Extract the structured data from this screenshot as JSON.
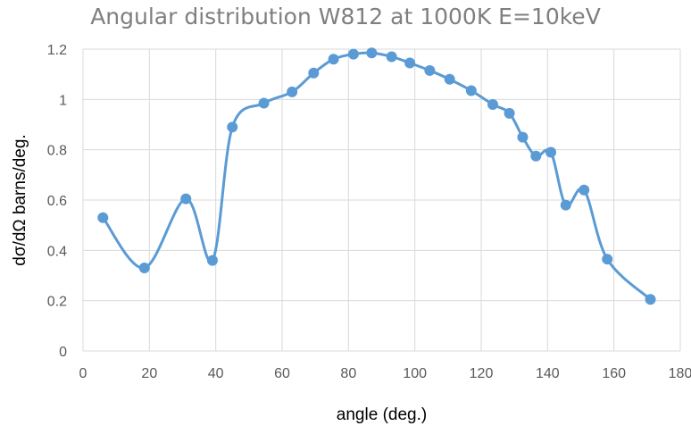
{
  "chart_data": {
    "type": "line",
    "title": "Angular distribution W812 at 1000K E=10keV",
    "xlabel": "angle (deg.)",
    "ylabel": "dσ/dΩ barns/deg.",
    "xlim": [
      0,
      180
    ],
    "ylim": [
      0,
      1.2
    ],
    "x_ticks": [
      "0",
      "20",
      "40",
      "60",
      "80",
      "100",
      "120",
      "140",
      "160",
      "180"
    ],
    "y_ticks": [
      "0",
      "0.2",
      "0.4",
      "0.6",
      "0.8",
      "1",
      "1.2"
    ],
    "grid": true,
    "smooth": true,
    "marker": "circle",
    "series": [
      {
        "color": "#5b9bd5",
        "points": [
          {
            "x": 6,
            "y": 0.53
          },
          {
            "x": 18.5,
            "y": 0.33
          },
          {
            "x": 31,
            "y": 0.605
          },
          {
            "x": 39,
            "y": 0.36
          },
          {
            "x": 45,
            "y": 0.89
          },
          {
            "x": 54.5,
            "y": 0.985
          },
          {
            "x": 63,
            "y": 1.03
          },
          {
            "x": 69.5,
            "y": 1.105
          },
          {
            "x": 75.5,
            "y": 1.16
          },
          {
            "x": 81.5,
            "y": 1.18
          },
          {
            "x": 87,
            "y": 1.185
          },
          {
            "x": 93,
            "y": 1.17
          },
          {
            "x": 98.5,
            "y": 1.145
          },
          {
            "x": 104.5,
            "y": 1.115
          },
          {
            "x": 110.5,
            "y": 1.08
          },
          {
            "x": 117,
            "y": 1.035
          },
          {
            "x": 123.5,
            "y": 0.98
          },
          {
            "x": 128.5,
            "y": 0.945
          },
          {
            "x": 132.5,
            "y": 0.85
          },
          {
            "x": 136.5,
            "y": 0.775
          },
          {
            "x": 141,
            "y": 0.79
          },
          {
            "x": 145.5,
            "y": 0.58
          },
          {
            "x": 151,
            "y": 0.64
          },
          {
            "x": 158,
            "y": 0.365
          },
          {
            "x": 171,
            "y": 0.205
          }
        ]
      }
    ]
  }
}
